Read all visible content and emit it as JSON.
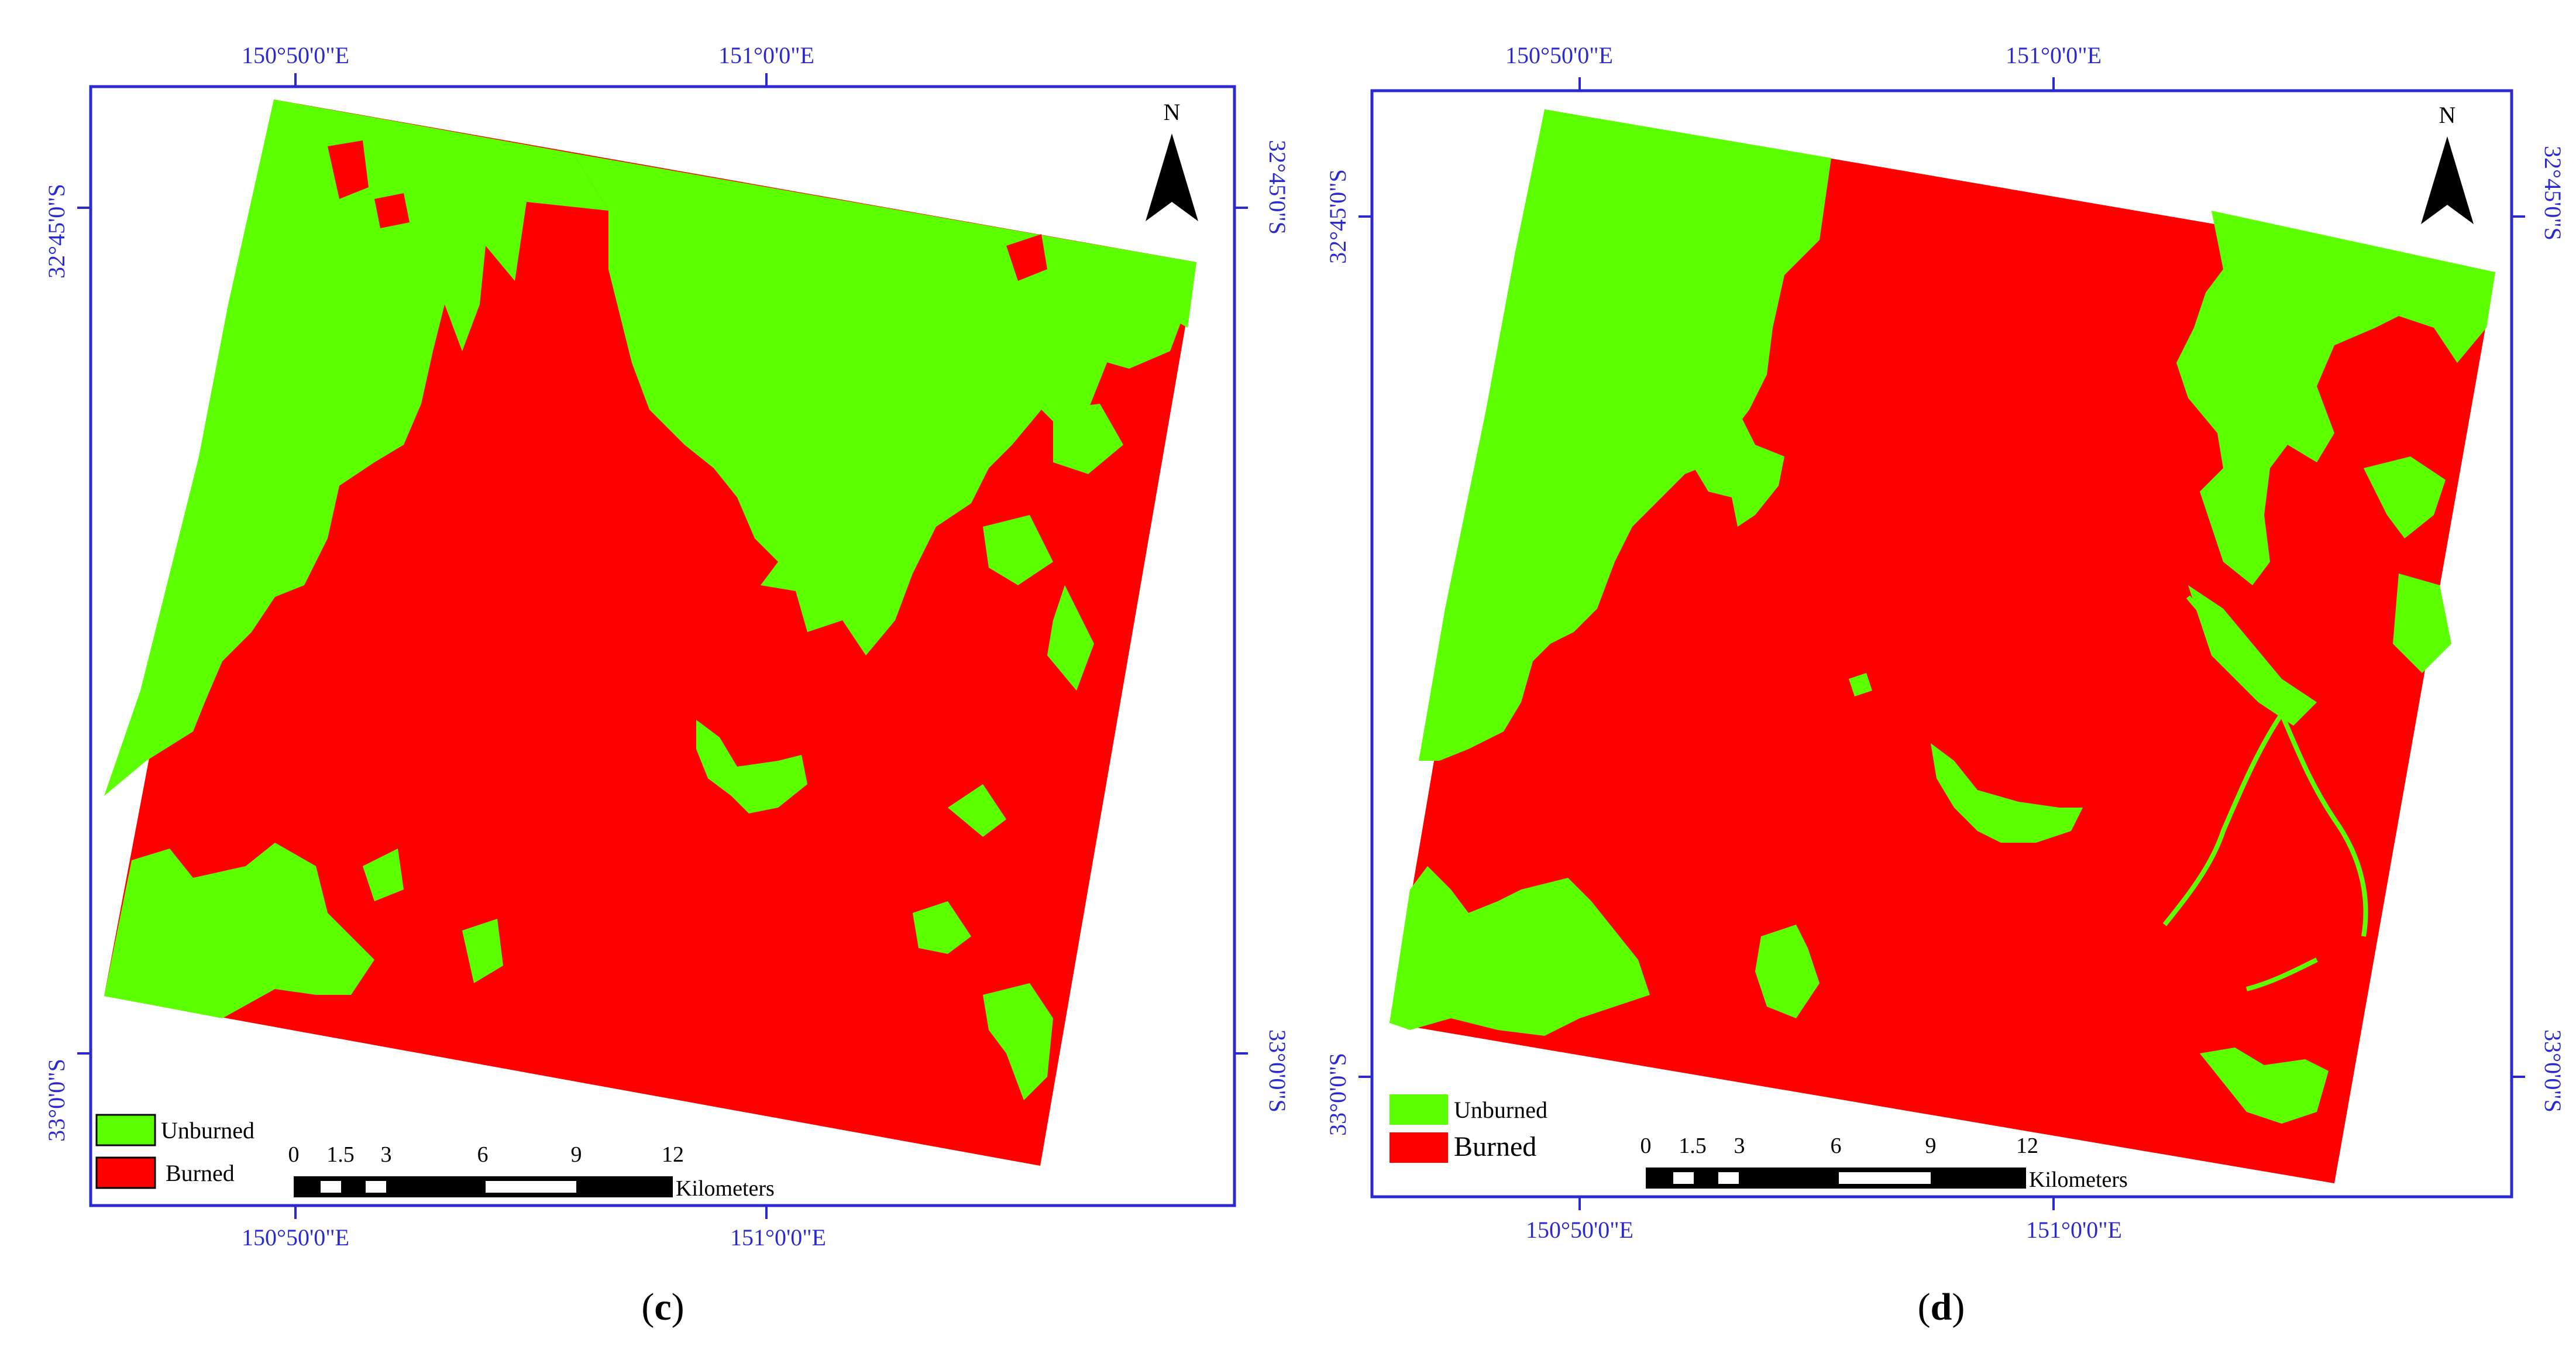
{
  "colors": {
    "burned": "#ff0000",
    "unburned": "#5cff00",
    "frame": "#2a2ad0",
    "outline": "#000000"
  },
  "panels": [
    {
      "id": "c",
      "caption_label": "c",
      "top_coords": [
        "150°50'0\"E",
        "151°0'0\"E"
      ],
      "bottom_coords": [
        "150°50'0\"E",
        "151°0'0\"E"
      ],
      "left_coords": [
        "32°45'0\"S",
        "33°0'0\"S"
      ],
      "right_coords": [
        "32°45'0\"S",
        "33°0'0\"S"
      ],
      "north_label": "N",
      "legend": [
        {
          "label": "Unburned",
          "color": "#5cff00"
        },
        {
          "label": "Burned",
          "color": "#ff0000"
        }
      ],
      "scale": {
        "ticks": [
          "0",
          "1.5",
          "3",
          "6",
          "9",
          "12"
        ],
        "unit": "Kilometers"
      }
    },
    {
      "id": "d",
      "caption_label": "d",
      "top_coords": [
        "150°50'0\"E",
        "151°0'0\"E"
      ],
      "bottom_coords": [
        "150°50'0\"E",
        "151°0'0\"E"
      ],
      "left_coords": [
        "32°45'0\"S",
        "33°0'0\"S"
      ],
      "right_coords": [
        "32°45'0\"S",
        "33°0'0\"S"
      ],
      "north_label": "N",
      "legend": [
        {
          "label": "Unburned",
          "color": "#5cff00"
        },
        {
          "label": "Burned",
          "color": "#ff0000"
        }
      ],
      "scale": {
        "ticks": [
          "0",
          "1.5",
          "3",
          "6",
          "9",
          "12"
        ],
        "unit": "Kilometers"
      }
    }
  ]
}
